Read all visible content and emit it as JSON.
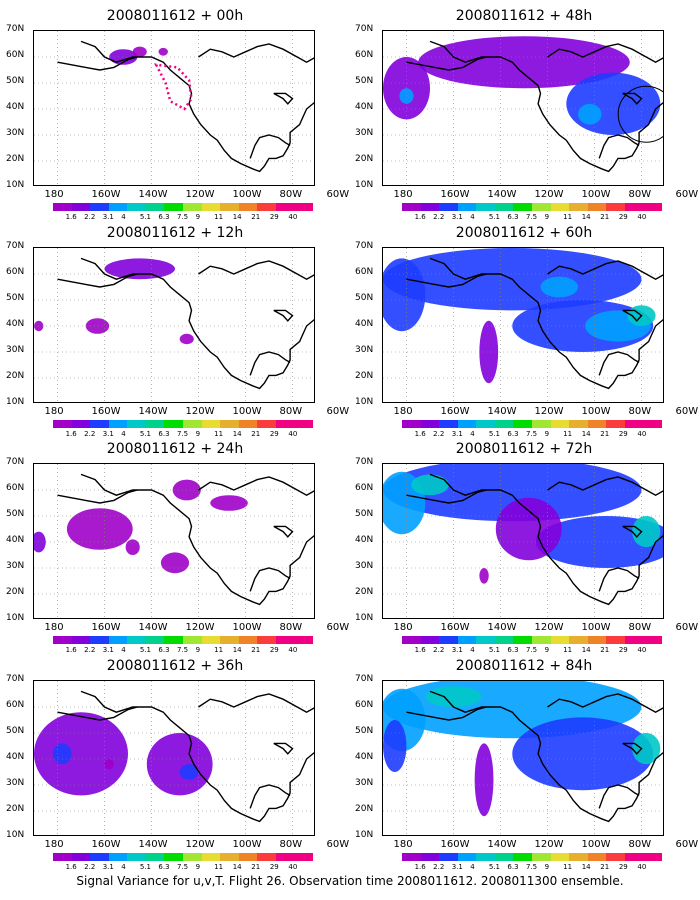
{
  "panels": [
    {
      "title": "2008011612 + 00h",
      "col": 0,
      "row": 0,
      "level": 0
    },
    {
      "title": "2008011612 + 12h",
      "col": 0,
      "row": 1,
      "level": 1
    },
    {
      "title": "2008011612 + 24h",
      "col": 0,
      "row": 2,
      "level": 2
    },
    {
      "title": "2008011612 + 36h",
      "col": 0,
      "row": 3,
      "level": 3
    },
    {
      "title": "2008011612 + 48h",
      "col": 1,
      "row": 0,
      "level": 4
    },
    {
      "title": "2008011612 + 60h",
      "col": 1,
      "row": 1,
      "level": 5
    },
    {
      "title": "2008011612 + 72h",
      "col": 1,
      "row": 2,
      "level": 6
    },
    {
      "title": "2008011612 + 84h",
      "col": 1,
      "row": 3,
      "level": 7
    }
  ],
  "lat_labels": [
    "70N",
    "60N",
    "50N",
    "40N",
    "30N",
    "20N",
    "10N"
  ],
  "lon_labels": [
    "180",
    "160W",
    "140W",
    "120W",
    "100W",
    "80W",
    "60W"
  ],
  "colorbar": {
    "labels": [
      "1.6",
      "2.2",
      "3.1",
      "4",
      "5.1",
      "6.3",
      "7.5",
      "9",
      "11",
      "14",
      "21",
      "29",
      "40"
    ],
    "colors": [
      "#a000c8",
      "#8200dc",
      "#1e3cff",
      "#00a0ff",
      "#00c8c8",
      "#00d28c",
      "#00dc00",
      "#a0e632",
      "#e6dc32",
      "#e6af2d",
      "#f08228",
      "#fa3c3c",
      "#f00082"
    ]
  },
  "footer": "Signal Variance for u,v,T. Flight 26. Observation time 2008011612. 2008011300 ensemble."
}
